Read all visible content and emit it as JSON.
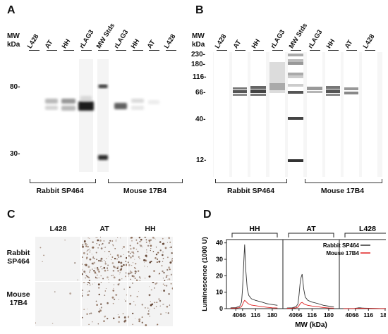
{
  "panelA": {
    "letter": "A",
    "mw_header": [
      "MW",
      "kDa"
    ],
    "lanes": [
      "L428",
      "AT",
      "HH",
      "rLAG3",
      "MW Stds",
      "rLAG3",
      "HH",
      "AT",
      "L428"
    ],
    "markers": [
      "80-",
      "30-"
    ],
    "groups": [
      "Rabbit SP464",
      "Mouse 17B4"
    ]
  },
  "panelB": {
    "letter": "B",
    "mw_header": [
      "MW",
      "kDa"
    ],
    "lanes": [
      "L428",
      "AT",
      "HH",
      "rLAG3",
      "MW Stds",
      "rLAG3",
      "HH",
      "AT",
      "L428"
    ],
    "markers": [
      "230-",
      "180-",
      "116-",
      "66-",
      "40-",
      "12-"
    ],
    "groups": [
      "Rabbit SP464",
      "Mouse 17B4"
    ]
  },
  "panelC": {
    "letter": "C",
    "columns": [
      "L428",
      "AT",
      "HH"
    ],
    "rows": [
      {
        "line1": "Rabbit",
        "line2": "SP464"
      },
      {
        "line1": "Mouse",
        "line2": "17B4"
      }
    ]
  },
  "panelD": {
    "letter": "D",
    "chart_data": {
      "type": "line",
      "panels": [
        "HH",
        "AT",
        "L428"
      ],
      "ylabel": "Luminescence (1000 U)",
      "xlabel": "MW (kDa)",
      "xticks": [
        40,
        66,
        116,
        180
      ],
      "yticks": [
        0,
        10,
        20,
        30,
        40
      ],
      "ylim": [
        0,
        42
      ],
      "xlim": [
        15,
        210
      ],
      "legend": [
        "Rabbit SP464",
        "Mouse 17B4"
      ],
      "legend_position": "top-right",
      "colors": {
        "Rabbit SP464": "#333333",
        "Mouse 17B4": "#e02020"
      },
      "x": [
        20,
        40,
        55,
        62,
        66,
        70,
        74,
        78,
        84,
        90,
        100,
        116,
        140,
        160,
        180,
        200
      ],
      "series": {
        "HH": {
          "Rabbit SP464": [
            0.5,
            0.6,
            1.5,
            4,
            12,
            26,
            39,
            24,
            12,
            8,
            6,
            5,
            4,
            3,
            2.5,
            2
          ],
          "Mouse 17B4": [
            0.3,
            0.3,
            0.6,
            1.2,
            2.5,
            4,
            5,
            4.5,
            3.5,
            2.8,
            2.2,
            1.8,
            1.2,
            0.8,
            0.5,
            0.4
          ]
        },
        "AT": {
          "Rabbit SP464": [
            0.4,
            0.5,
            1.2,
            3,
            8,
            15,
            19,
            21,
            12,
            7,
            5,
            4,
            3,
            2,
            1.5,
            1
          ],
          "Mouse 17B4": [
            0.2,
            0.3,
            0.5,
            0.9,
            1.8,
            2.8,
            3.5,
            3.8,
            3,
            2.5,
            2,
            1.6,
            1.1,
            0.7,
            0.4,
            0.3
          ]
        },
        "L428": {
          "Rabbit SP464": [
            0.1,
            0.1,
            0.1,
            0.1,
            0.2,
            0.3,
            0.4,
            0.5,
            0.5,
            0.4,
            0.3,
            0.2,
            0.15,
            0.1,
            0.1,
            0.1
          ],
          "Mouse 17B4": [
            0.05,
            0.05,
            0.05,
            0.05,
            0.1,
            0.15,
            0.2,
            0.25,
            0.25,
            0.2,
            0.15,
            0.1,
            0.08,
            0.05,
            0.05,
            0.05
          ]
        }
      }
    }
  }
}
